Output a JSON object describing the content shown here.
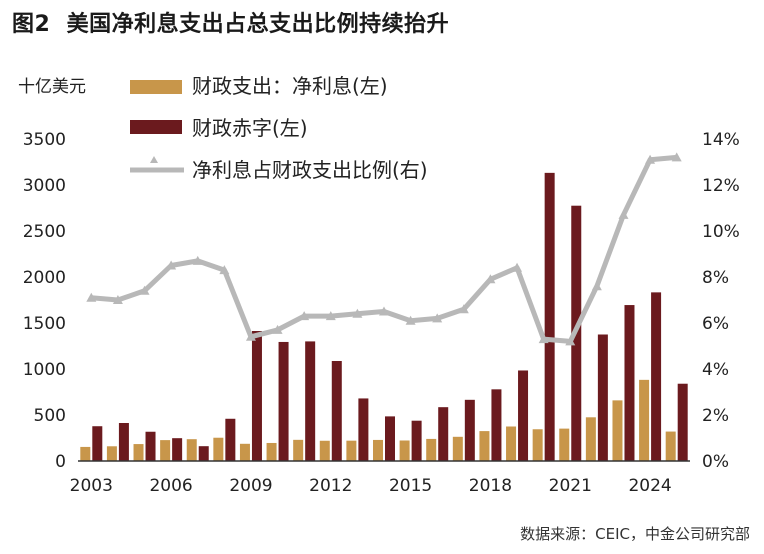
{
  "figure": {
    "label": "图2",
    "title": "美国净利息支出占总支出比例持续抬升",
    "source": "数据来源：CEIC，中金公司研究部"
  },
  "colors": {
    "interest": "#C8964A",
    "deficit": "#6B1A1E",
    "ratio": "#B8B8B8",
    "axis": "#333333"
  },
  "chart_data": {
    "type": "bar+line",
    "title": "美国净利息支出占总支出比例持续抬升",
    "left_axis": {
      "unit": "十亿美元",
      "ylim": [
        0,
        3500
      ],
      "ticks": [
        "0",
        "500",
        "1000",
        "1500",
        "2000",
        "2500",
        "3000",
        "3500"
      ]
    },
    "right_axis": {
      "ylim": [
        0,
        14
      ],
      "ticks": [
        "0%",
        "2%",
        "4%",
        "6%",
        "8%",
        "10%",
        "12%",
        "14%"
      ]
    },
    "x_tick_labels": [
      "2003",
      "2006",
      "2009",
      "2012",
      "2015",
      "2018",
      "2021",
      "2024"
    ],
    "years": [
      2003,
      2004,
      2005,
      2006,
      2007,
      2008,
      2009,
      2010,
      2011,
      2012,
      2013,
      2014,
      2015,
      2016,
      2017,
      2018,
      2019,
      2020,
      2021,
      2022,
      2023,
      2024,
      2025
    ],
    "series": [
      {
        "name": "财政支出：净利息(左)",
        "type": "bar",
        "axis": "left",
        "values": [
          153,
          160,
          184,
          227,
          237,
          253,
          187,
          196,
          230,
          220,
          221,
          229,
          223,
          240,
          263,
          325,
          375,
          345,
          352,
          475,
          659,
          882,
          320
        ]
      },
      {
        "name": "财政赤字(左)",
        "type": "bar",
        "axis": "left",
        "values": [
          378,
          413,
          318,
          248,
          161,
          459,
          1413,
          1294,
          1300,
          1087,
          680,
          485,
          438,
          585,
          665,
          779,
          984,
          3132,
          2775,
          1375,
          1695,
          1833,
          840
        ]
      },
      {
        "name": "净利息占财政支出比例(右)",
        "type": "line",
        "axis": "right",
        "values": [
          7.1,
          7.0,
          7.4,
          8.5,
          8.7,
          8.3,
          5.4,
          5.7,
          6.3,
          6.3,
          6.4,
          6.5,
          6.1,
          6.2,
          6.6,
          7.9,
          8.4,
          5.3,
          5.2,
          7.6,
          10.7,
          13.1,
          13.2
        ]
      }
    ]
  }
}
